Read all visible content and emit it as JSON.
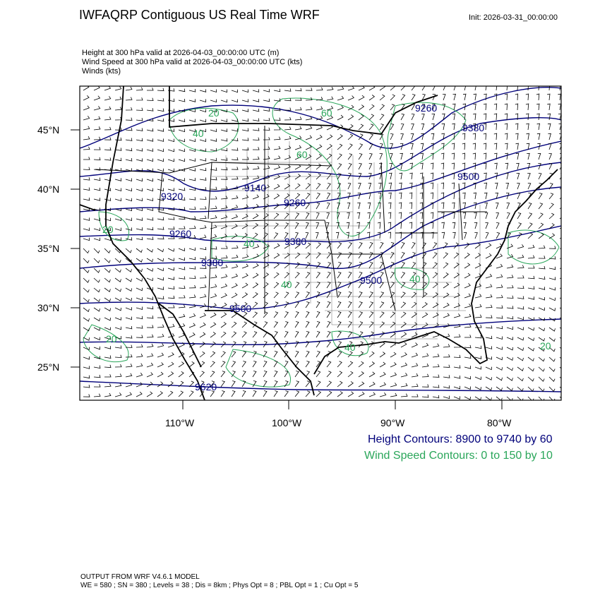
{
  "title": "IWFAQRP Contiguous US Real Time WRF",
  "init": "Init: 2026-03-31_00:00:00",
  "fields": [
    "Height at 300 hPa valid at 2026-04-03_00:00:00 UTC   (m)",
    "Wind Speed at 300 hPa valid at 2026-04-03_00:00:00 UTC   (kts)",
    "Winds   (kts)"
  ],
  "lat_labels": [
    "45°N",
    "40°N",
    "35°N",
    "30°N",
    "25°N"
  ],
  "lon_labels": [
    "110°W",
    "100°W",
    "90°W",
    "80°W"
  ],
  "height_contour_labels": [
    "9260",
    "9380",
    "9500",
    "9320",
    "9140",
    "9260",
    "9260",
    "9380",
    "9380",
    "9500",
    "9500",
    "9620"
  ],
  "wind_contour_labels": [
    "20",
    "60",
    "40",
    "60",
    "40",
    "20",
    "40",
    "40",
    "20",
    "40",
    "20"
  ],
  "legend": {
    "height": "Height Contours: 8900 to 9740 by 60",
    "wind": "Wind Speed Contours: 0 to 150 by 10"
  },
  "footer": {
    "line1": "OUTPUT FROM WRF V4.6.1 MODEL",
    "line2": "WE = 580 ; SN = 380 ; Levels = 38 ; Dis = 8km ; Phys Opt = 8 ; PBL Opt = 1 ; Cu Opt = 5"
  },
  "colors": {
    "height_contour": "#00007a",
    "wind_contour": "#2aa65a",
    "barbs": "#000000"
  }
}
